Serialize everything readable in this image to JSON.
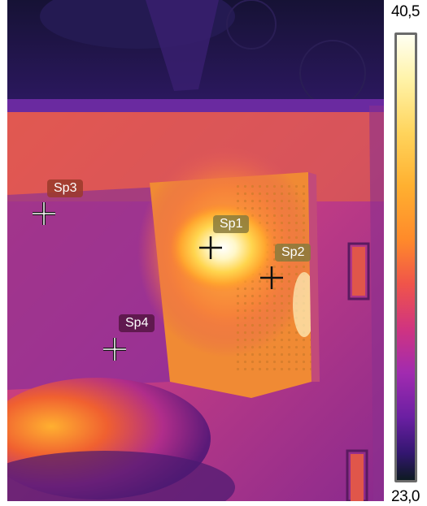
{
  "scale": {
    "max": "40,5",
    "min": "23,0"
  },
  "spots": [
    {
      "label": "Sp1"
    },
    {
      "label": "Sp2"
    },
    {
      "label": "Sp3"
    },
    {
      "label": "Sp4"
    }
  ],
  "colors": {
    "label_bg_hot": "#8a7a3c",
    "label_bg_warm": "#9a3a2a",
    "label_bg_cool": "#5a1648",
    "cross_dark": "#111111",
    "cross_light": "#ffffff"
  }
}
